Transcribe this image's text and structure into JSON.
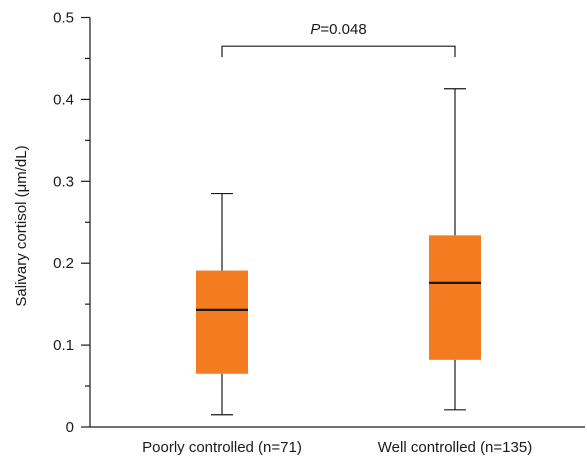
{
  "chart_data": {
    "type": "box",
    "title": "",
    "xlabel": "",
    "ylabel": "Salivary cortisol (μm/dL)",
    "ylim": [
      0,
      0.5
    ],
    "yticks": [
      "0",
      "0.1",
      "0.2",
      "0.3",
      "0.4",
      "0.5"
    ],
    "ytick_values": [
      0,
      0.1,
      0.2,
      0.3,
      0.4,
      0.5
    ],
    "grid": false,
    "box_color": "#f47b20",
    "median_color": "#1a1a1a",
    "categories": [
      "Poorly controlled (n=71)",
      "Well controlled (n=135)"
    ],
    "boxes": [
      {
        "category": "Poorly controlled (n=71)",
        "min": 0.015,
        "q1": 0.065,
        "median": 0.143,
        "q3": 0.191,
        "max": 0.285
      },
      {
        "category": "Well controlled (n=135)",
        "min": 0.021,
        "q1": 0.082,
        "median": 0.176,
        "q3": 0.234,
        "max": 0.413
      }
    ],
    "annotation": {
      "italic_part": "P",
      "rest": "=0.048",
      "bracket_level": 0.465
    }
  }
}
